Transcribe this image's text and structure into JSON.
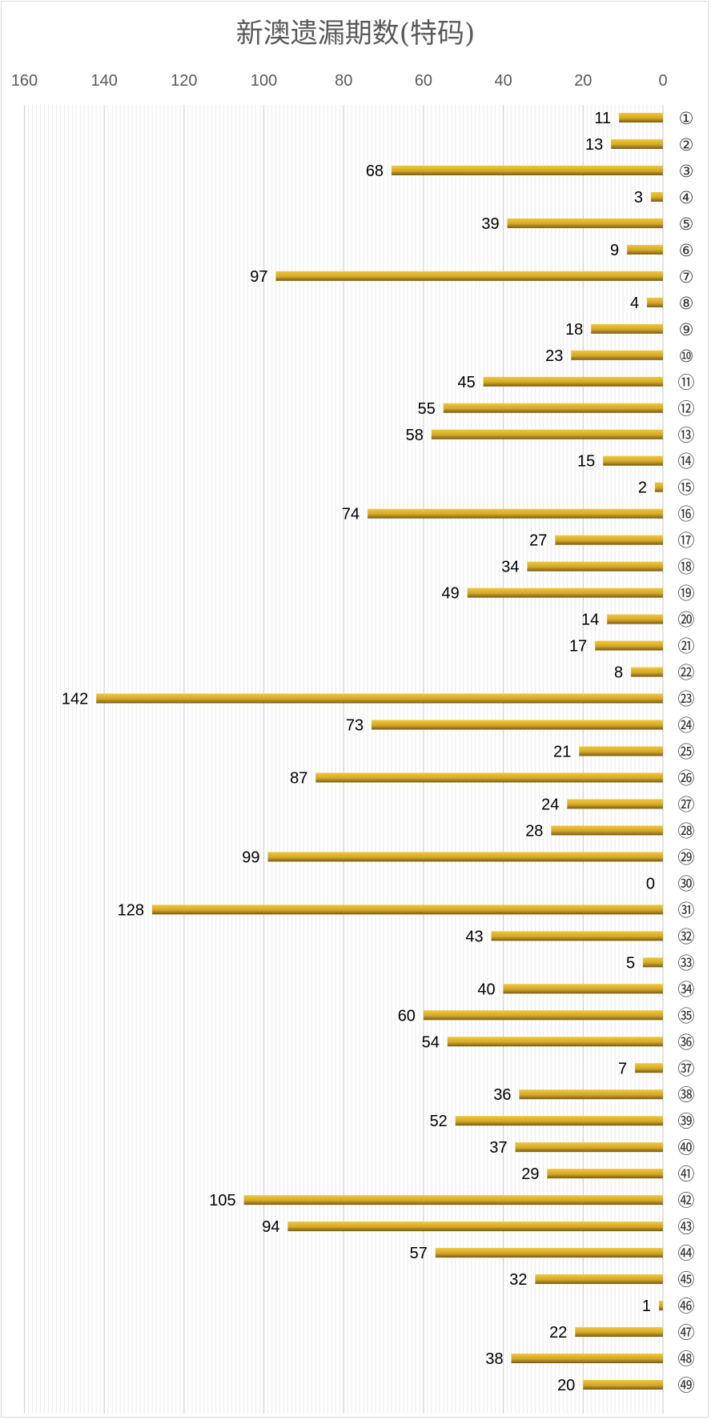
{
  "chart_data": {
    "type": "bar",
    "orientation": "horizontal",
    "x_axis_reversed": true,
    "title": "新澳遗漏期数(特码)",
    "xlim": [
      0,
      160
    ],
    "ticks": [
      0,
      20,
      40,
      60,
      80,
      100,
      120,
      140,
      160
    ],
    "grid": true,
    "bar_color": "#d4a82a",
    "categories": [
      "①",
      "②",
      "③",
      "④",
      "⑤",
      "⑥",
      "⑦",
      "⑧",
      "⑨",
      "⑩",
      "⑪",
      "⑫",
      "⑬",
      "⑭",
      "⑮",
      "⑯",
      "⑰",
      "⑱",
      "⑲",
      "⑳",
      "㉑",
      "㉒",
      "㉓",
      "㉔",
      "㉕",
      "㉖",
      "㉗",
      "㉘",
      "㉙",
      "㉚",
      "㉛",
      "㉜",
      "㉝",
      "㉞",
      "㉟",
      "㊱",
      "㊲",
      "㊳",
      "㊴",
      "㊵",
      "㊶",
      "㊷",
      "㊸",
      "㊹",
      "㊺",
      "㊻",
      "㊼",
      "㊽",
      "㊾"
    ],
    "values": [
      11,
      13,
      68,
      3,
      39,
      9,
      97,
      4,
      18,
      23,
      45,
      55,
      58,
      15,
      2,
      74,
      27,
      34,
      49,
      14,
      17,
      8,
      142,
      73,
      21,
      87,
      24,
      28,
      99,
      0,
      128,
      43,
      5,
      40,
      60,
      54,
      7,
      36,
      52,
      37,
      29,
      105,
      94,
      57,
      32,
      1,
      22,
      38,
      20
    ]
  }
}
